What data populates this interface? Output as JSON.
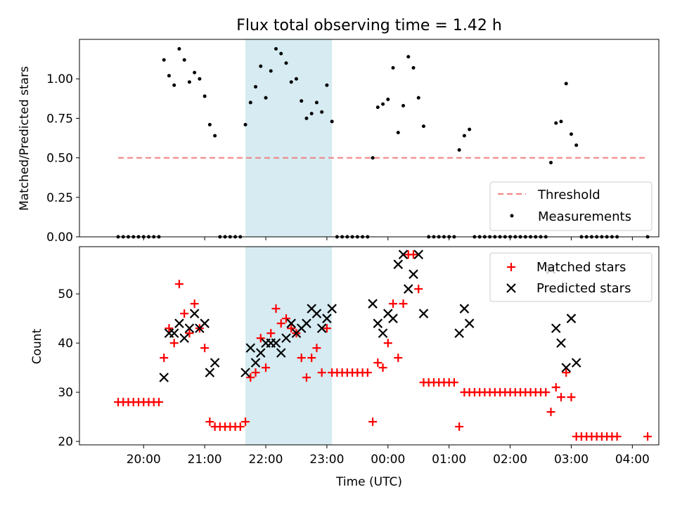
{
  "chart_data": [
    {
      "type": "scatter",
      "title": "Flux total observing time = 1.42 h",
      "ylabel": "Matched/Predicted stars",
      "ylim": [
        0,
        1.25
      ],
      "yticks": [
        0.0,
        0.25,
        0.5,
        0.75,
        1.0
      ],
      "yticklabels": [
        "0.00",
        "0.25",
        "0.50",
        "0.75",
        "1.00"
      ],
      "shaded_interval": [
        "21:40",
        "23:05"
      ],
      "shaded_color": "#add8e6",
      "threshold": {
        "name": "Threshold",
        "y": 0.5,
        "x_start": "19:35",
        "x_end": "04:15",
        "color": "#f08080",
        "style": "dashed"
      },
      "legend": {
        "position": "lower-right",
        "entries": [
          "Threshold",
          "Measurements"
        ]
      },
      "series": [
        {
          "name": "Measurements",
          "color": "#000000",
          "marker": "dot",
          "x": [
            "19:35",
            "19:40",
            "19:45",
            "19:50",
            "19:55",
            "20:00",
            "20:05",
            "20:10",
            "20:15",
            "20:20",
            "20:25",
            "20:30",
            "20:35",
            "20:40",
            "20:45",
            "20:50",
            "20:55",
            "21:00",
            "21:05",
            "21:10",
            "21:15",
            "21:20",
            "21:25",
            "21:30",
            "21:35",
            "21:40",
            "21:45",
            "21:50",
            "21:55",
            "22:00",
            "22:05",
            "22:10",
            "22:15",
            "22:20",
            "22:25",
            "22:30",
            "22:35",
            "22:40",
            "22:45",
            "22:50",
            "22:55",
            "23:00",
            "23:05",
            "23:10",
            "23:15",
            "23:20",
            "23:25",
            "23:30",
            "23:35",
            "23:40",
            "23:45",
            "23:50",
            "23:55",
            "00:00",
            "00:05",
            "00:10",
            "00:15",
            "00:20",
            "00:25",
            "00:30",
            "00:35",
            "00:40",
            "00:45",
            "00:50",
            "00:55",
            "01:00",
            "01:05",
            "01:10",
            "01:15",
            "01:20",
            "01:25",
            "01:30",
            "01:35",
            "01:40",
            "01:45",
            "01:50",
            "01:55",
            "02:00",
            "02:05",
            "02:10",
            "02:15",
            "02:20",
            "02:25",
            "02:30",
            "02:35",
            "02:40",
            "02:45",
            "02:50",
            "02:55",
            "03:00",
            "03:05",
            "03:10",
            "03:15",
            "03:20",
            "03:25",
            "03:30",
            "03:35",
            "03:40",
            "03:45",
            "04:15"
          ],
          "y": [
            0,
            0,
            0,
            0,
            0,
            0,
            0,
            0,
            0,
            1.12,
            1.02,
            0.96,
            1.19,
            1.12,
            0.98,
            1.04,
            1.0,
            0.89,
            0.71,
            0.64,
            0,
            0,
            0,
            0,
            0,
            0.71,
            0.85,
            0.95,
            1.08,
            0.88,
            1.05,
            1.19,
            1.16,
            1.1,
            0.98,
            1.0,
            0.86,
            0.75,
            0.78,
            0.85,
            0.79,
            0.96,
            0.73,
            0,
            0,
            0,
            0,
            0,
            0,
            0,
            0.5,
            0.82,
            0.84,
            0.87,
            1.07,
            0.66,
            0.83,
            1.14,
            1.07,
            0.88,
            0.7,
            0,
            0,
            0,
            0,
            0,
            0,
            0.55,
            0.64,
            0.68,
            0,
            0,
            0,
            0,
            0,
            0,
            0,
            0,
            0,
            0,
            0,
            0,
            0,
            0,
            0,
            0.47,
            0.72,
            0.73,
            0.97,
            0.65,
            0.58,
            0,
            0,
            0,
            0,
            0,
            0,
            0,
            0,
            0
          ]
        }
      ]
    },
    {
      "type": "scatter",
      "xlabel": "Time (UTC)",
      "ylabel": "Count",
      "ylim": [
        19.3,
        59.6
      ],
      "yticks": [
        20,
        30,
        40,
        50
      ],
      "xticks": [
        "20:00",
        "21:00",
        "22:00",
        "23:00",
        "00:00",
        "01:00",
        "02:00",
        "03:00",
        "04:00"
      ],
      "shaded_interval": [
        "21:40",
        "23:05"
      ],
      "shaded_color": "#add8e6",
      "legend": {
        "position": "top-right",
        "entries": [
          "Matched stars",
          "Predicted stars"
        ]
      },
      "series": [
        {
          "name": "Matched stars",
          "color": "#ff0000",
          "marker": "plus",
          "points": [
            [
              "19:35",
              28
            ],
            [
              "19:40",
              28
            ],
            [
              "19:45",
              28
            ],
            [
              "19:50",
              28
            ],
            [
              "19:55",
              28
            ],
            [
              "20:00",
              28
            ],
            [
              "20:05",
              28
            ],
            [
              "20:10",
              28
            ],
            [
              "20:15",
              28
            ],
            [
              "20:20",
              37
            ],
            [
              "20:25",
              43
            ],
            [
              "20:30",
              40
            ],
            [
              "20:35",
              52
            ],
            [
              "20:40",
              46
            ],
            [
              "20:45",
              42
            ],
            [
              "20:50",
              48
            ],
            [
              "20:55",
              43
            ],
            [
              "21:00",
              39
            ],
            [
              "21:05",
              24
            ],
            [
              "21:10",
              23
            ],
            [
              "21:15",
              23
            ],
            [
              "21:20",
              23
            ],
            [
              "21:25",
              23
            ],
            [
              "21:30",
              23
            ],
            [
              "21:35",
              23
            ],
            [
              "21:40",
              24
            ],
            [
              "21:45",
              33
            ],
            [
              "21:50",
              34
            ],
            [
              "21:55",
              41
            ],
            [
              "22:00",
              35
            ],
            [
              "22:05",
              42
            ],
            [
              "22:10",
              47
            ],
            [
              "22:15",
              44
            ],
            [
              "22:20",
              45
            ],
            [
              "22:25",
              43
            ],
            [
              "22:30",
              42
            ],
            [
              "22:35",
              37
            ],
            [
              "22:40",
              33
            ],
            [
              "22:45",
              37
            ],
            [
              "22:50",
              39
            ],
            [
              "22:55",
              34
            ],
            [
              "23:00",
              43
            ],
            [
              "23:05",
              34
            ],
            [
              "23:10",
              34
            ],
            [
              "23:15",
              34
            ],
            [
              "23:20",
              34
            ],
            [
              "23:25",
              34
            ],
            [
              "23:30",
              34
            ],
            [
              "23:35",
              34
            ],
            [
              "23:40",
              34
            ],
            [
              "23:45",
              24
            ],
            [
              "23:50",
              36
            ],
            [
              "23:55",
              35
            ],
            [
              "00:00",
              40
            ],
            [
              "00:05",
              48
            ],
            [
              "00:10",
              37
            ],
            [
              "00:15",
              48
            ],
            [
              "00:20",
              58
            ],
            [
              "00:25",
              58
            ],
            [
              "00:30",
              51
            ],
            [
              "00:35",
              32
            ],
            [
              "00:40",
              32
            ],
            [
              "00:45",
              32
            ],
            [
              "00:50",
              32
            ],
            [
              "00:55",
              32
            ],
            [
              "01:00",
              32
            ],
            [
              "01:05",
              32
            ],
            [
              "01:10",
              23
            ],
            [
              "01:15",
              30
            ],
            [
              "01:20",
              30
            ],
            [
              "01:25",
              30
            ],
            [
              "01:30",
              30
            ],
            [
              "01:35",
              30
            ],
            [
              "01:40",
              30
            ],
            [
              "01:45",
              30
            ],
            [
              "01:50",
              30
            ],
            [
              "01:55",
              30
            ],
            [
              "02:00",
              30
            ],
            [
              "02:05",
              30
            ],
            [
              "02:10",
              30
            ],
            [
              "02:15",
              30
            ],
            [
              "02:20",
              30
            ],
            [
              "02:25",
              30
            ],
            [
              "02:30",
              30
            ],
            [
              "02:35",
              30
            ],
            [
              "02:40",
              26
            ],
            [
              "02:45",
              31
            ],
            [
              "02:50",
              29
            ],
            [
              "02:55",
              34
            ],
            [
              "03:00",
              29
            ],
            [
              "03:05",
              21
            ],
            [
              "03:10",
              21
            ],
            [
              "03:15",
              21
            ],
            [
              "03:20",
              21
            ],
            [
              "03:25",
              21
            ],
            [
              "03:30",
              21
            ],
            [
              "03:35",
              21
            ],
            [
              "03:40",
              21
            ],
            [
              "03:45",
              21
            ],
            [
              "04:15",
              21
            ]
          ]
        },
        {
          "name": "Predicted stars",
          "color": "#000000",
          "marker": "x",
          "points": [
            [
              "20:20",
              33
            ],
            [
              "20:25",
              42
            ],
            [
              "20:30",
              42
            ],
            [
              "20:35",
              44
            ],
            [
              "20:40",
              41
            ],
            [
              "20:45",
              43
            ],
            [
              "20:50",
              46
            ],
            [
              "20:55",
              43
            ],
            [
              "21:00",
              44
            ],
            [
              "21:05",
              34
            ],
            [
              "21:10",
              36
            ],
            [
              "21:40",
              34
            ],
            [
              "21:45",
              39
            ],
            [
              "21:50",
              36
            ],
            [
              "21:55",
              38
            ],
            [
              "22:00",
              40
            ],
            [
              "22:05",
              40
            ],
            [
              "22:10",
              40
            ],
            [
              "22:15",
              38
            ],
            [
              "22:20",
              41
            ],
            [
              "22:25",
              44
            ],
            [
              "22:30",
              42
            ],
            [
              "22:35",
              43
            ],
            [
              "22:40",
              44
            ],
            [
              "22:45",
              47
            ],
            [
              "22:50",
              46
            ],
            [
              "22:55",
              43
            ],
            [
              "23:00",
              45
            ],
            [
              "23:05",
              47
            ],
            [
              "23:45",
              48
            ],
            [
              "23:50",
              44
            ],
            [
              "23:55",
              42
            ],
            [
              "00:00",
              46
            ],
            [
              "00:05",
              45
            ],
            [
              "00:10",
              56
            ],
            [
              "00:15",
              58
            ],
            [
              "00:20",
              51
            ],
            [
              "00:25",
              54
            ],
            [
              "00:30",
              58
            ],
            [
              "00:35",
              46
            ],
            [
              "01:10",
              42
            ],
            [
              "01:15",
              47
            ],
            [
              "01:20",
              44
            ],
            [
              "02:40",
              55
            ],
            [
              "02:45",
              43
            ],
            [
              "02:50",
              40
            ],
            [
              "02:55",
              35
            ],
            [
              "03:00",
              45
            ],
            [
              "03:05",
              36
            ]
          ]
        }
      ]
    }
  ]
}
